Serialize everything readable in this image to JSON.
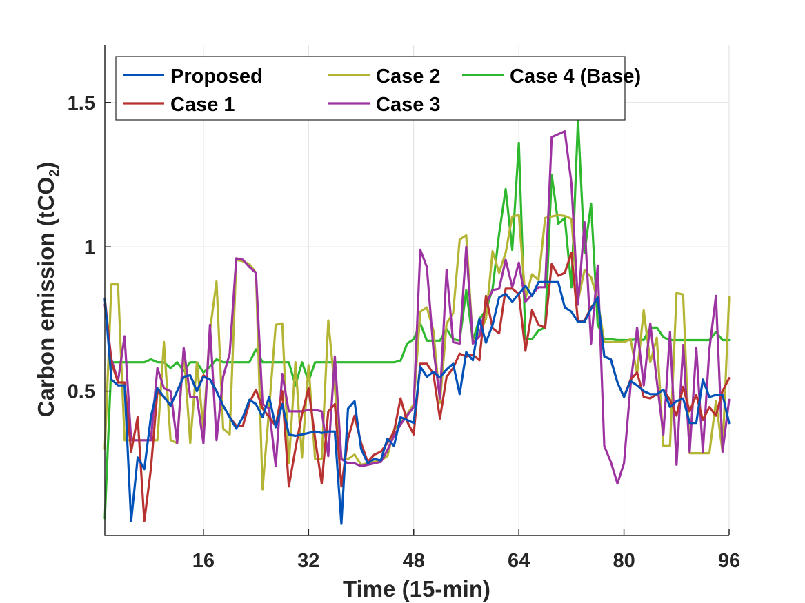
{
  "chart_data": {
    "type": "line",
    "title": "",
    "xlabel": "Time (15-min)",
    "ylabel_main": "Carbon emission (tCO",
    "ylabel_sub": "2",
    "ylabel_close": ")",
    "xlim": [
      1,
      96
    ],
    "ylim": [
      0,
      1.7
    ],
    "xticks": [
      16,
      32,
      48,
      64,
      80,
      96
    ],
    "xtick_labels": [
      "16",
      "32",
      "48",
      "64",
      "80",
      "96"
    ],
    "yticks": [
      0.5,
      1,
      1.5
    ],
    "ytick_labels": [
      "0.5",
      "1",
      "1.5"
    ],
    "grid": true,
    "legend_position": "top-left",
    "x": [
      1,
      2,
      3,
      4,
      5,
      6,
      7,
      8,
      9,
      10,
      11,
      12,
      13,
      14,
      15,
      16,
      17,
      18,
      19,
      20,
      21,
      22,
      23,
      24,
      25,
      26,
      27,
      28,
      29,
      30,
      31,
      32,
      33,
      34,
      35,
      36,
      37,
      38,
      39,
      40,
      41,
      42,
      43,
      44,
      45,
      46,
      47,
      48,
      49,
      50,
      51,
      52,
      53,
      54,
      55,
      56,
      57,
      58,
      59,
      60,
      61,
      62,
      63,
      64,
      65,
      66,
      67,
      68,
      69,
      70,
      71,
      72,
      73,
      74,
      75,
      76,
      77,
      78,
      79,
      80,
      81,
      82,
      83,
      84,
      85,
      86,
      87,
      88,
      89,
      90,
      91,
      92,
      93,
      94,
      95,
      96
    ],
    "series": [
      {
        "name": "Proposed",
        "color": "#0052b8",
        "values": [
          0.82,
          0.54,
          0.52,
          0.52,
          0.05,
          0.27,
          0.23,
          0.41,
          0.51,
          0.48,
          0.45,
          0.5,
          0.55,
          0.555,
          0.5,
          0.55,
          0.54,
          0.5,
          0.45,
          0.41,
          0.37,
          0.41,
          0.47,
          0.455,
          0.41,
          0.48,
          0.375,
          0.455,
          0.35,
          0.345,
          0.35,
          0.355,
          0.36,
          0.355,
          0.36,
          0.36,
          0.04,
          0.44,
          0.465,
          0.3,
          0.25,
          0.265,
          0.26,
          0.335,
          0.31,
          0.41,
          0.4,
          0.39,
          0.585,
          0.55,
          0.567,
          0.548,
          0.575,
          0.595,
          0.49,
          0.635,
          0.607,
          0.75,
          0.668,
          0.73,
          0.825,
          0.837,
          0.81,
          0.837,
          0.865,
          0.83,
          0.878,
          0.878,
          0.878,
          0.878,
          0.79,
          0.775,
          0.74,
          0.74,
          0.785,
          0.825,
          0.62,
          0.61,
          0.53,
          0.48,
          0.535,
          0.52,
          0.5,
          0.49,
          0.49,
          0.505,
          0.445,
          0.465,
          0.475,
          0.39,
          0.39,
          0.54,
          0.48,
          0.487,
          0.487,
          0.39
        ]
      },
      {
        "name": "Case 1",
        "color": "#b83232",
        "values": [
          0.82,
          0.6,
          0.53,
          0.53,
          0.29,
          0.41,
          0.05,
          0.23,
          0.5,
          0.48,
          0.45,
          0.5,
          0.55,
          0.555,
          0.5,
          0.555,
          0.54,
          0.5,
          0.45,
          0.41,
          0.38,
          0.38,
          0.46,
          0.505,
          0.44,
          0.41,
          0.38,
          0.5,
          0.17,
          0.3,
          0.42,
          0.51,
          0.335,
          0.18,
          0.43,
          0.455,
          0.17,
          0.335,
          0.415,
          0.32,
          0.255,
          0.28,
          0.29,
          0.32,
          0.36,
          0.475,
          0.395,
          0.35,
          0.595,
          0.595,
          0.56,
          0.405,
          0.55,
          0.58,
          0.63,
          0.62,
          0.627,
          0.607,
          0.83,
          0.718,
          0.7,
          0.855,
          0.855,
          0.837,
          0.64,
          0.78,
          0.73,
          0.72,
          0.94,
          0.9,
          0.91,
          0.98,
          0.74,
          0.745,
          0.79,
          0.82,
          0.62,
          0.61,
          0.53,
          0.48,
          0.54,
          0.565,
          0.48,
          0.475,
          0.49,
          0.505,
          0.47,
          0.415,
          0.515,
          0.43,
          0.487,
          0.4,
          0.445,
          0.415,
          0.5,
          0.545
        ]
      },
      {
        "name": "Case 2",
        "color": "#b5b535",
        "values": [
          0.3,
          0.87,
          0.87,
          0.33,
          0.33,
          0.33,
          0.33,
          0.33,
          0.33,
          0.67,
          0.33,
          0.32,
          0.64,
          0.32,
          0.6,
          0.37,
          0.71,
          0.88,
          0.37,
          0.35,
          0.955,
          0.95,
          0.94,
          0.91,
          0.16,
          0.44,
          0.73,
          0.735,
          0.25,
          0.6,
          0.27,
          0.59,
          0.265,
          0.265,
          0.745,
          0.51,
          0.265,
          0.265,
          0.28,
          0.245,
          0.25,
          0.255,
          0.26,
          0.275,
          0.365,
          0.39,
          0.42,
          0.455,
          0.775,
          0.79,
          0.71,
          0.46,
          0.735,
          0.77,
          1.025,
          1.04,
          0.67,
          0.7,
          0.75,
          0.985,
          0.91,
          0.98,
          1.105,
          1.11,
          0.82,
          0.905,
          0.885,
          1.1,
          1.105,
          1.11,
          1.107,
          1.097,
          0.815,
          0.92,
          0.895,
          0.815,
          0.67,
          0.67,
          0.67,
          0.67,
          0.68,
          0.56,
          0.78,
          0.6,
          0.685,
          0.31,
          0.31,
          0.84,
          0.835,
          0.285,
          0.285,
          0.285,
          0.285,
          0.465,
          0.29,
          0.825
        ]
      },
      {
        "name": "Case 3",
        "color": "#9c33a0",
        "values": [
          0.8,
          0.61,
          0.535,
          0.69,
          0.33,
          0.33,
          0.33,
          0.33,
          0.58,
          0.51,
          0.5,
          0.32,
          0.65,
          0.48,
          0.48,
          0.32,
          0.73,
          0.33,
          0.55,
          0.63,
          0.96,
          0.955,
          0.93,
          0.91,
          0.455,
          0.44,
          0.24,
          0.56,
          0.43,
          0.43,
          0.43,
          0.435,
          0.435,
          0.43,
          0.275,
          0.62,
          0.265,
          0.25,
          0.25,
          0.24,
          0.245,
          0.25,
          0.255,
          0.295,
          0.345,
          0.385,
          0.415,
          0.445,
          0.99,
          0.93,
          0.645,
          0.475,
          0.92,
          0.67,
          0.665,
          1.0,
          0.665,
          0.69,
          0.8,
          0.85,
          0.855,
          0.955,
          0.86,
          0.945,
          0.81,
          0.835,
          0.86,
          0.86,
          1.38,
          1.39,
          1.4,
          1.22,
          0.8,
          1.085,
          0.665,
          0.935,
          0.31,
          0.255,
          0.18,
          0.25,
          0.52,
          0.72,
          0.52,
          0.735,
          0.535,
          0.35,
          0.705,
          0.245,
          0.66,
          0.29,
          0.65,
          0.29,
          0.645,
          0.83,
          0.29,
          0.47
        ]
      },
      {
        "name": "Case 4 (Base)",
        "color": "#2eb82e",
        "values": [
          0.06,
          0.6,
          0.6,
          0.6,
          0.6,
          0.6,
          0.6,
          0.61,
          0.6,
          0.6,
          0.58,
          0.6,
          0.57,
          0.6,
          0.6,
          0.565,
          0.585,
          0.61,
          0.6,
          0.6,
          0.6,
          0.6,
          0.6,
          0.645,
          0.6,
          0.6,
          0.6,
          0.6,
          0.6,
          0.52,
          0.6,
          0.535,
          0.6,
          0.6,
          0.6,
          0.6,
          0.6,
          0.6,
          0.6,
          0.6,
          0.6,
          0.6,
          0.6,
          0.6,
          0.6,
          0.605,
          0.665,
          0.68,
          0.735,
          0.675,
          0.675,
          0.675,
          0.715,
          0.68,
          0.675,
          0.85,
          0.675,
          0.75,
          0.78,
          0.855,
          1.045,
          1.2,
          0.99,
          1.36,
          0.68,
          0.68,
          0.71,
          0.72,
          1.25,
          1.08,
          1.1,
          0.86,
          1.44,
          0.98,
          1.15,
          0.73,
          0.68,
          0.68,
          0.677,
          0.677,
          0.677,
          0.68,
          0.677,
          0.72,
          0.72,
          0.687,
          0.677,
          0.677,
          0.677,
          0.677,
          0.677,
          0.677,
          0.677,
          0.705,
          0.677,
          0.677
        ]
      }
    ],
    "legend": {
      "columns": 3,
      "order": [
        "Proposed",
        "Case 2",
        "Case 4 (Base)",
        "Case 1",
        "Case 3"
      ]
    }
  }
}
